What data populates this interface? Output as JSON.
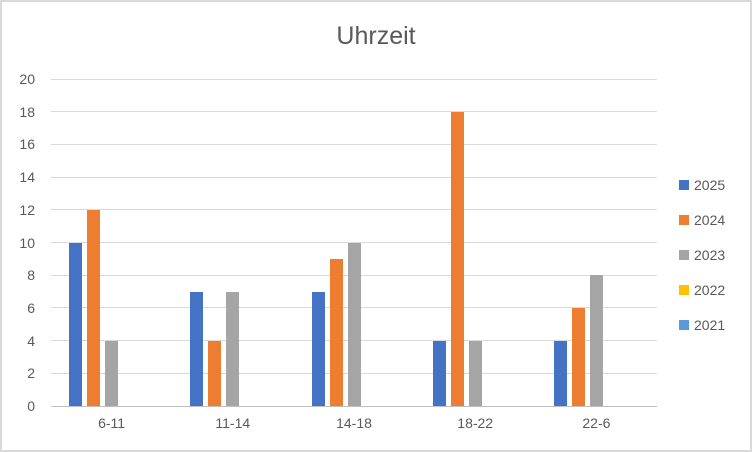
{
  "chart_data": {
    "type": "bar",
    "title": "Uhrzeit",
    "categories": [
      "6-11",
      "11-14",
      "14-18",
      "18-22",
      "22-6"
    ],
    "series": [
      {
        "name": "2025",
        "color": "#4472C4",
        "values": [
          10,
          7,
          7,
          4,
          4
        ]
      },
      {
        "name": "2024",
        "color": "#ED7D31",
        "values": [
          12,
          4,
          9,
          18,
          6
        ]
      },
      {
        "name": "2023",
        "color": "#A5A5A5",
        "values": [
          4,
          7,
          10,
          4,
          8
        ]
      },
      {
        "name": "2022",
        "color": "#FFC000",
        "values": [
          0,
          0,
          0,
          0,
          0
        ]
      },
      {
        "name": "2021",
        "color": "#5B9BD5",
        "values": [
          0,
          0,
          0,
          0,
          0
        ]
      }
    ],
    "xlabel": "",
    "ylabel": "",
    "ylim": [
      0,
      20
    ],
    "ytick_step": 2,
    "grid": true,
    "legend_position": "right"
  },
  "colors": {
    "title_text": "#595959",
    "axis_text": "#595959",
    "gridline": "#D9D9D9",
    "axis_line": "#BFBFBF",
    "frame_border": "#D9D9D9",
    "background": "#FFFFFF"
  }
}
